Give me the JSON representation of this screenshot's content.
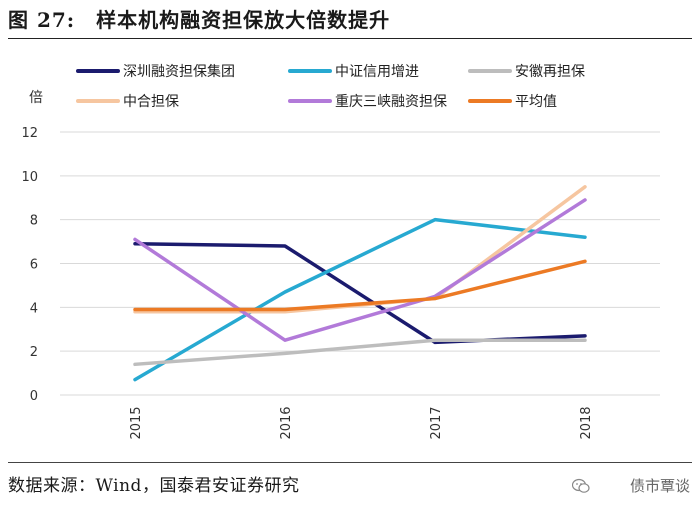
{
  "figure": {
    "title": "图 27:　样本机构融资担保放大倍数提升",
    "source": "数据来源：Wind，国泰君安证券研究",
    "watermark": "债市覃谈"
  },
  "chart_data": {
    "type": "line",
    "ylabel": "倍",
    "xlabel": "",
    "ylim": [
      0,
      12
    ],
    "yticks": [
      0,
      2,
      4,
      6,
      8,
      10,
      12
    ],
    "categories": [
      "2015",
      "2016",
      "2017",
      "2018"
    ],
    "grid": true,
    "legend_position": "top",
    "series": [
      {
        "name": "深圳融资担保集团",
        "color": "#1b1b6e",
        "values": [
          6.9,
          6.8,
          2.4,
          2.7
        ]
      },
      {
        "name": "中证信用增进",
        "color": "#27a9d1",
        "values": [
          0.7,
          4.7,
          8.0,
          7.2
        ]
      },
      {
        "name": "安徽再担保",
        "color": "#bdbdbd",
        "values": [
          1.4,
          1.9,
          2.5,
          2.5
        ]
      },
      {
        "name": "中合担保",
        "color": "#f6c6a0",
        "values": [
          3.8,
          3.8,
          4.4,
          9.5
        ]
      },
      {
        "name": "重庆三峡融资担保",
        "color": "#b27ad9",
        "values": [
          7.1,
          2.5,
          4.5,
          8.9
        ]
      },
      {
        "name": "平均值",
        "color": "#ec7a24",
        "values": [
          3.9,
          3.9,
          4.4,
          6.1
        ]
      }
    ]
  }
}
